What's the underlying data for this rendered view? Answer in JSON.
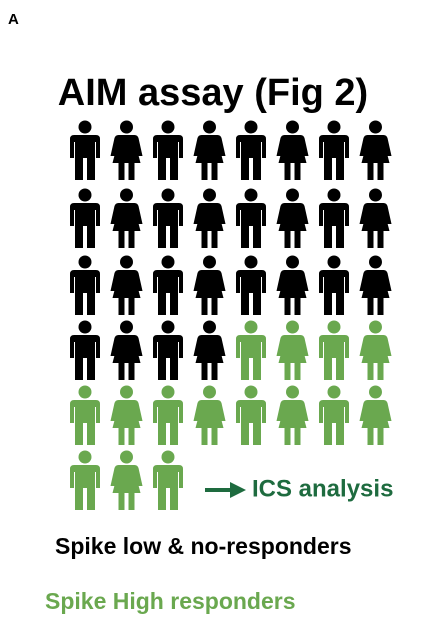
{
  "panel_label": "A",
  "title": "AIM assay (Fig 2)",
  "groups": [
    {
      "label": "Spike low & no-responders",
      "count": 28,
      "color": "#000000"
    },
    {
      "label": "Spike High responders",
      "count": 15,
      "color": "#6aa84f"
    }
  ],
  "annotation": {
    "text": "ICS analysis",
    "color": "#1e6b3f"
  }
}
